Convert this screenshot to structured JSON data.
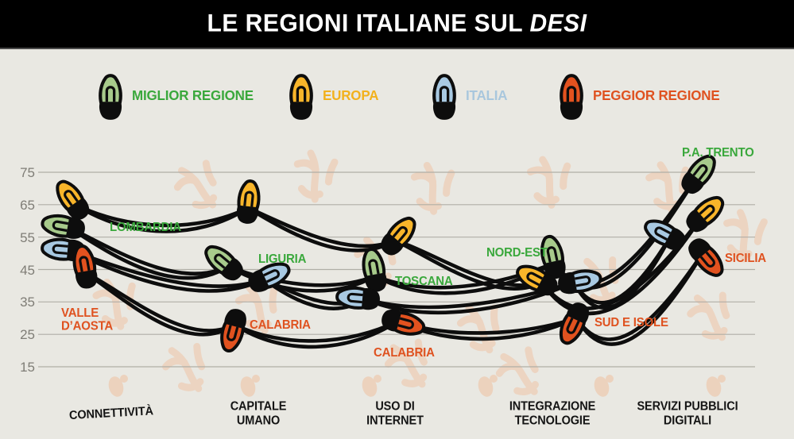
{
  "title": {
    "prefix": "LE REGIONI ITALIANE SUL ",
    "emphasis": "DESI"
  },
  "legend": [
    {
      "label": "MIGLIOR REGIONE",
      "bulb_color": "#a7ca8b",
      "label_color": "#3aa83c"
    },
    {
      "label": "EUROPA",
      "bulb_color": "#f8b52a",
      "label_color": "#f2b11d"
    },
    {
      "label": "ITALIA",
      "bulb_color": "#a8c9e2",
      "label_color": "#a9c7dd"
    },
    {
      "label": "PEGGIOR REGIONE",
      "bulb_color": "#e2521f",
      "label_color": "#df5220"
    }
  ],
  "chart_data": {
    "type": "line",
    "title": "LE REGIONI ITALIANE SUL DESI",
    "categories": [
      "CONNETTIVITÀ",
      "CAPITALE UMANO",
      "USO DI INTERNET",
      "INTEGRAZIONE TECNOLOGIE",
      "SERVIZI PUBBLICI DIGITALI"
    ],
    "y_ticks": [
      75,
      65,
      55,
      45,
      35,
      25,
      15
    ],
    "y_range": [
      15,
      75
    ],
    "grid": true,
    "legend_position": "top",
    "series": [
      {
        "name": "MIGLIOR REGIONE",
        "bulb_color": "#a7ca8b",
        "label_color": "#3aa83c",
        "values": [
          58,
          46,
          43,
          47,
          73
        ],
        "point_labels": [
          "LOMBARDIA",
          "LIGURIA",
          "TOSCANA",
          "NORD-EST",
          "P.A. TRENTO"
        ]
      },
      {
        "name": "EUROPA",
        "bulb_color": "#f8b52a",
        "label_color": "#f2b11d",
        "values": [
          65,
          64,
          54,
          41,
          61
        ],
        "point_labels": [
          "",
          "",
          "",
          "",
          ""
        ]
      },
      {
        "name": "ITALIA",
        "bulb_color": "#a8c9e2",
        "label_color": "#a9c7dd",
        "values": [
          51,
          42,
          36,
          41,
          55
        ],
        "point_labels": [
          "",
          "",
          "",
          "",
          ""
        ]
      },
      {
        "name": "PEGGIOR REGIONE",
        "bulb_color": "#e2521f",
        "label_color": "#df5220",
        "values": [
          44,
          28,
          29,
          30,
          50
        ],
        "point_labels": [
          "VALLE D’AOSTA",
          "CALABRIA",
          "CALABRIA",
          "SUD E ISOLE",
          "SICILIA"
        ]
      }
    ]
  }
}
